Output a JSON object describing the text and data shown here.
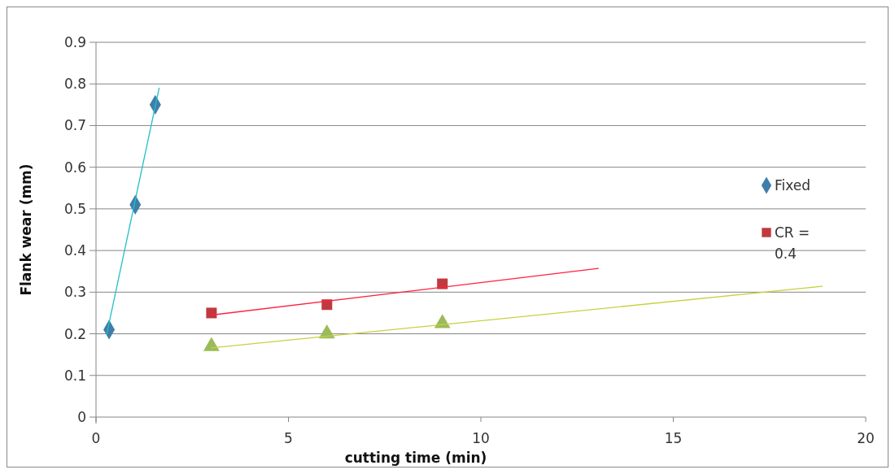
{
  "chart_data": {
    "type": "scatter",
    "xlabel": "cutting time (min)",
    "ylabel": "Flank wear (mm)",
    "xlim": [
      0,
      20
    ],
    "xticks": [
      0,
      5,
      10,
      15,
      20
    ],
    "ylim": [
      0,
      0.9
    ],
    "yticks": [
      0,
      0.1,
      0.2,
      0.3,
      0.4,
      0.5,
      0.6,
      0.7,
      0.8,
      0.9
    ],
    "grid": "y",
    "legend": "right",
    "series": [
      {
        "type": "line",
        "marker": "none",
        "color": "#1fc0c8",
        "x": [
          0.28,
          1.64
        ],
        "values": [
          0.2,
          0.79
        ]
      },
      {
        "type": "line",
        "marker": "none",
        "color": "#ff2040",
        "x": [
          3,
          13.05
        ],
        "values": [
          0.245,
          0.357
        ]
      },
      {
        "type": "line",
        "marker": "none",
        "color": "#c8d040",
        "x": [
          3,
          18.87
        ],
        "values": [
          0.166,
          0.314
        ]
      },
      {
        "name": "Fixed",
        "marker": "diamond",
        "color": "#3f7ea8",
        "x": [
          0.34,
          1.02,
          1.54
        ],
        "values": [
          0.21,
          0.51,
          0.75
        ]
      },
      {
        "name": "CR = 0.4",
        "marker": "square",
        "color": "#c0393f",
        "x": [
          3,
          6,
          9
        ],
        "values": [
          0.25,
          0.27,
          0.32
        ]
      },
      {
        "marker": "triangle",
        "color": "#9bbb59",
        "x": [
          3,
          6,
          9
        ],
        "values": [
          0.17,
          0.2,
          0.225
        ]
      }
    ]
  }
}
